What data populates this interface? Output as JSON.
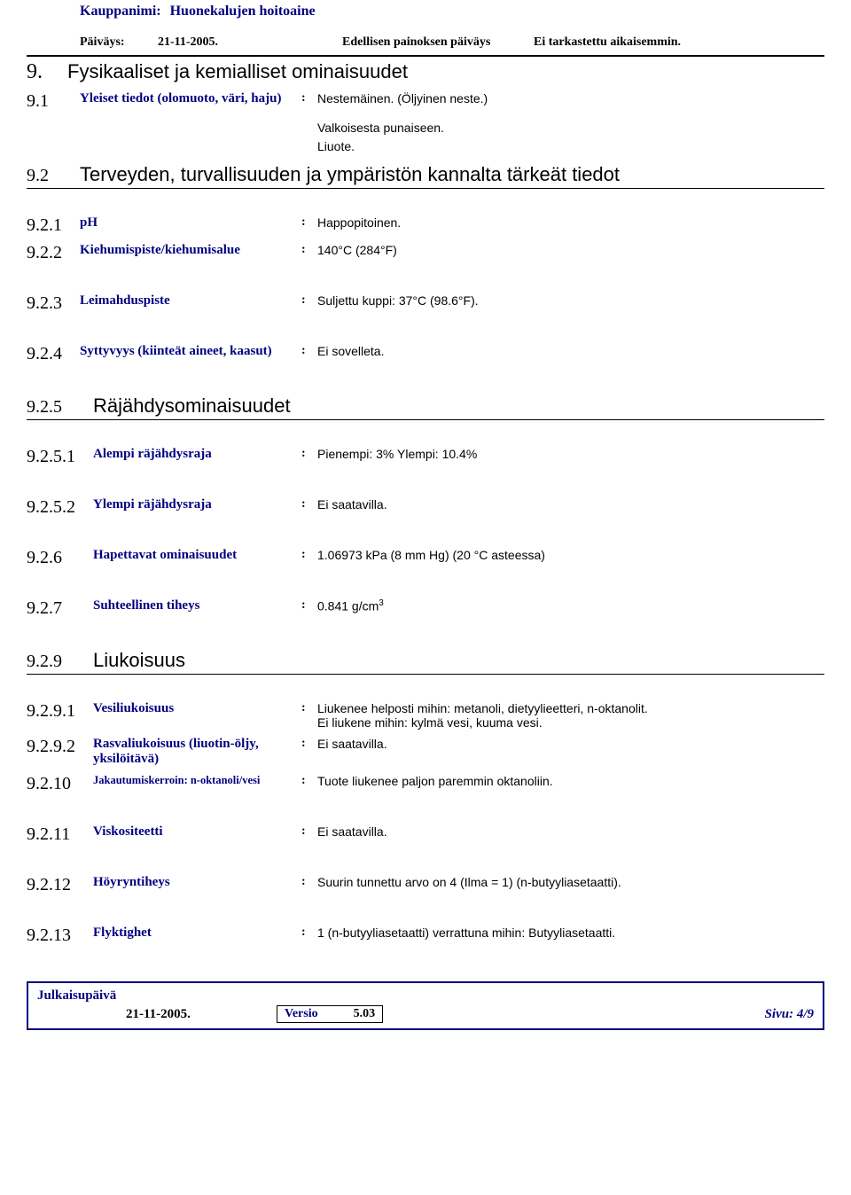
{
  "header": {
    "trade_name_label": "Kauppanimi:",
    "trade_name": "Huonekalujen hoitoaine",
    "date_label": "Päiväys:",
    "date": "21-11-2005.",
    "prev_label": "Edellisen painoksen päiväys",
    "prev_value": "Ei tarkastettu aikaisemmin."
  },
  "s9": {
    "num": "9.",
    "title": "Fysikaaliset ja kemialliset ominaisuudet"
  },
  "r91": {
    "num": "9.1",
    "label": "Yleiset tiedot (olomuoto, väri, haju)",
    "value": "Nestemäinen. (Öljyinen neste.)"
  },
  "r91_extra1": "Valkoisesta punaiseen.",
  "r91_extra2": "Liuote.",
  "s92": {
    "num": "9.2",
    "title": "Terveyden, turvallisuuden ja ympäristön kannalta tärkeät tiedot"
  },
  "r921": {
    "num": "9.2.1",
    "label": "pH",
    "value": "Happopitoinen."
  },
  "r922": {
    "num": "9.2.2",
    "label": "Kiehumispiste/kiehumisalue",
    "value": "140°C (284°F)"
  },
  "r923": {
    "num": "9.2.3",
    "label": "Leimahduspiste",
    "value": "Suljettu kuppi: 37°C (98.6°F)."
  },
  "r924": {
    "num": "9.2.4",
    "label": "Syttyvyys (kiinteät aineet, kaasut)",
    "value": "Ei sovelleta."
  },
  "s925": {
    "num": "9.2.5",
    "title": "Räjähdysominaisuudet"
  },
  "r9251": {
    "num": "9.2.5.1",
    "label": "Alempi räjähdysraja",
    "value": "Pienempi: 3%  Ylempi: 10.4%"
  },
  "r9252": {
    "num": "9.2.5.2",
    "label": "Ylempi räjähdysraja",
    "value": "Ei saatavilla."
  },
  "r926": {
    "num": "9.2.6",
    "label": "Hapettavat ominaisuudet",
    "value": "1.06973 kPa (8 mm Hg) (20 °C asteessa)"
  },
  "r927": {
    "num": "9.2.7",
    "label": "Suhteellinen tiheys",
    "value_pre": "0.841 g/cm",
    "value_sup": "3"
  },
  "s929": {
    "num": "9.2.9",
    "title": "Liukoisuus"
  },
  "r9291": {
    "num": "9.2.9.1",
    "label": "Vesiliukoisuus",
    "value1": "Liukenee helposti mihin: metanoli, dietyylieetteri, n-oktanolit.",
    "value2": "Ei liukene mihin: kylmä vesi, kuuma vesi."
  },
  "r9292": {
    "num": "9.2.9.2",
    "label": "Rasvaliukoisuus (liuotin-öljy, yksilöitävä)",
    "value": "Ei saatavilla."
  },
  "r9210": {
    "num": "9.2.10",
    "label": "Jakautumiskerroin: n-oktanoli/vesi",
    "value": "Tuote liukenee paljon paremmin oktanoliin."
  },
  "r9211": {
    "num": "9.2.11",
    "label": "Viskositeetti",
    "value": "Ei saatavilla."
  },
  "r9212": {
    "num": "9.2.12",
    "label": "Höyryntiheys",
    "value": "Suurin tunnettu arvo on 4  (Ilma = 1)  (n-butyyliasetaatti)."
  },
  "r9213": {
    "num": "9.2.13",
    "label": "Flyktighet",
    "value": "1 (n-butyyliasetaatti) verrattuna mihin: Butyyliasetaatti."
  },
  "footer": {
    "pub_label": "Julkaisupäivä",
    "date": "21-11-2005.",
    "version_label": "Versio",
    "version": "5.03",
    "page": "Sivu: 4/9"
  },
  "colors": {
    "navy": "#000080",
    "black": "#000000",
    "background": "#ffffff"
  }
}
